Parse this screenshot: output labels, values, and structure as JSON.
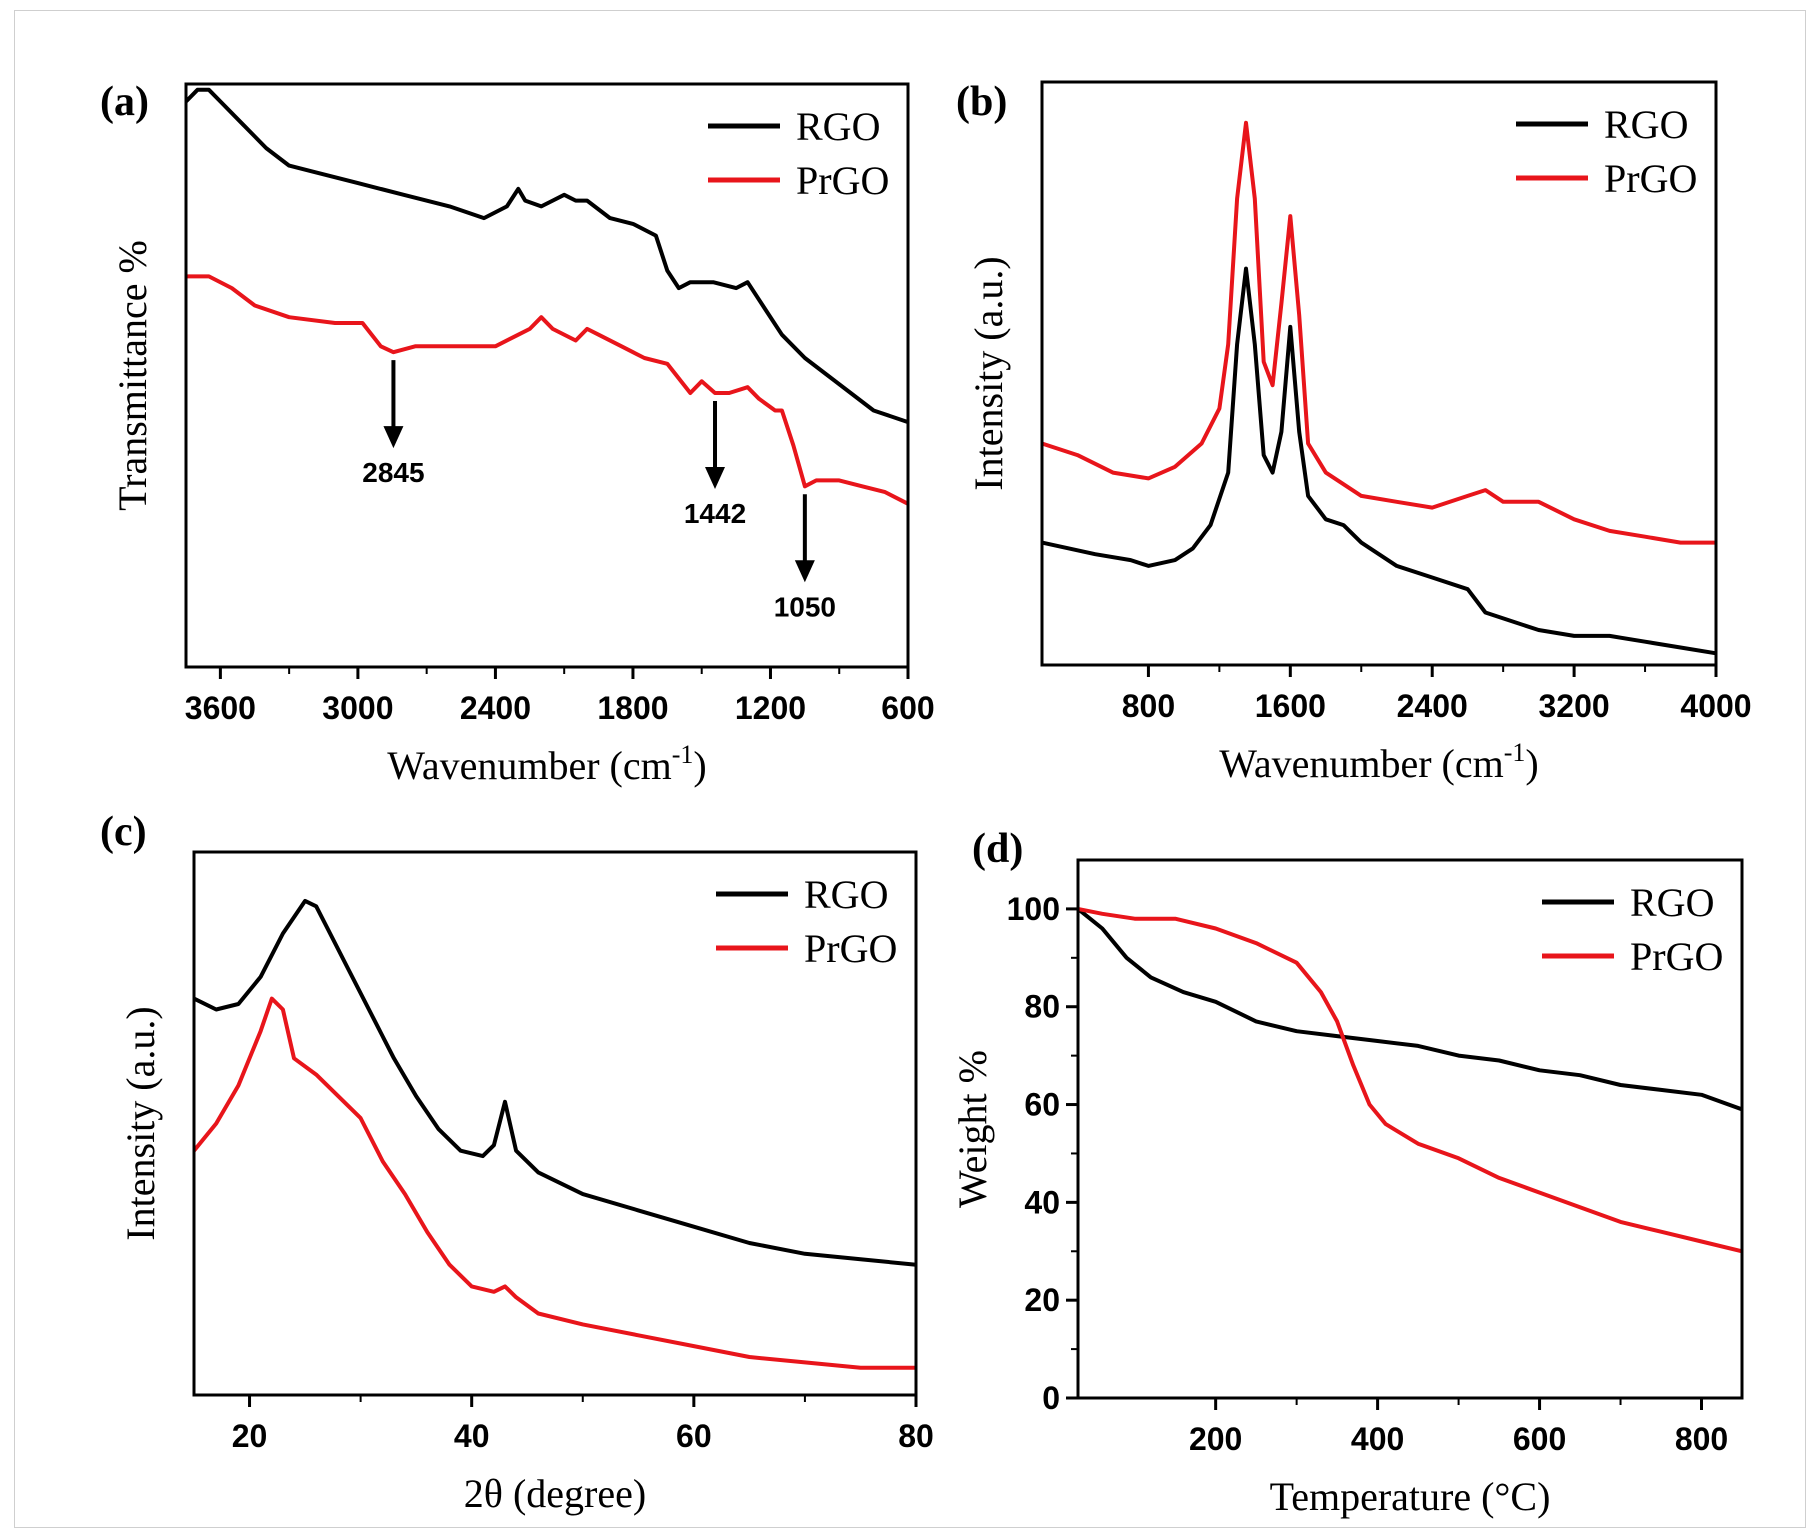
{
  "chart_data": [
    {
      "panel": "(a)",
      "type": "line",
      "xlabel": "Wavenumber (cm-1)",
      "ylabel": "Transmittance %",
      "xlim": [
        3750,
        600
      ],
      "reversed_x": true,
      "ylim": [
        0,
        100
      ],
      "x_ticks": [
        3600,
        3000,
        2400,
        1800,
        1200,
        600
      ],
      "y_ticks": [],
      "y_tick_labels_shown": false,
      "legend": "top-right",
      "series": [
        {
          "name": "RGO",
          "color": "#000000",
          "points": [
            [
              3750,
              97
            ],
            [
              3700,
              99
            ],
            [
              3650,
              99
            ],
            [
              3600,
              97
            ],
            [
              3500,
              93
            ],
            [
              3400,
              89
            ],
            [
              3300,
              86
            ],
            [
              3200,
              85
            ],
            [
              3000,
              83
            ],
            [
              2800,
              81
            ],
            [
              2600,
              79
            ],
            [
              2450,
              77
            ],
            [
              2350,
              79
            ],
            [
              2300,
              82
            ],
            [
              2270,
              80
            ],
            [
              2200,
              79
            ],
            [
              2150,
              80
            ],
            [
              2100,
              81
            ],
            [
              2050,
              80
            ],
            [
              2000,
              80
            ],
            [
              1900,
              77
            ],
            [
              1800,
              76
            ],
            [
              1700,
              74
            ],
            [
              1650,
              68
            ],
            [
              1600,
              65
            ],
            [
              1550,
              66
            ],
            [
              1450,
              66
            ],
            [
              1350,
              65
            ],
            [
              1300,
              66
            ],
            [
              1250,
              63
            ],
            [
              1150,
              57
            ],
            [
              1050,
              53
            ],
            [
              950,
              50
            ],
            [
              850,
              47
            ],
            [
              750,
              44
            ],
            [
              600,
              42
            ]
          ]
        },
        {
          "name": "PrGO",
          "color": "#e8151b",
          "points": [
            [
              3750,
              67
            ],
            [
              3650,
              67
            ],
            [
              3550,
              65
            ],
            [
              3450,
              62
            ],
            [
              3300,
              60
            ],
            [
              3100,
              59
            ],
            [
              2980,
              59
            ],
            [
              2900,
              55
            ],
            [
              2845,
              54
            ],
            [
              2750,
              55
            ],
            [
              2600,
              55
            ],
            [
              2400,
              55
            ],
            [
              2300,
              57
            ],
            [
              2250,
              58
            ],
            [
              2200,
              60
            ],
            [
              2150,
              58
            ],
            [
              2050,
              56
            ],
            [
              2000,
              58
            ],
            [
              1950,
              57
            ],
            [
              1850,
              55
            ],
            [
              1800,
              54
            ],
            [
              1750,
              53
            ],
            [
              1650,
              52
            ],
            [
              1550,
              47
            ],
            [
              1500,
              49
            ],
            [
              1442,
              47
            ],
            [
              1380,
              47
            ],
            [
              1300,
              48
            ],
            [
              1250,
              46
            ],
            [
              1180,
              44
            ],
            [
              1150,
              44
            ],
            [
              1100,
              38
            ],
            [
              1050,
              31
            ],
            [
              1000,
              32
            ],
            [
              900,
              32
            ],
            [
              800,
              31
            ],
            [
              700,
              30
            ],
            [
              600,
              28
            ]
          ]
        }
      ],
      "annotations": [
        {
          "label": "2845",
          "x": 2845
        },
        {
          "label": "1442",
          "x": 1442
        },
        {
          "label": "1050",
          "x": 1050
        }
      ]
    },
    {
      "panel": "(b)",
      "type": "line",
      "xlabel": "Wavenumber (cm-1)",
      "ylabel": "Intensity (a.u.)",
      "xlim": [
        200,
        4000
      ],
      "reversed_x": false,
      "ylim": [
        0,
        100
      ],
      "x_ticks": [
        800,
        1600,
        2400,
        3200,
        4000
      ],
      "y_ticks": [],
      "y_tick_labels_shown": false,
      "legend": "top-right",
      "series": [
        {
          "name": "RGO",
          "color": "#000000",
          "points": [
            [
              200,
              21
            ],
            [
              500,
              19
            ],
            [
              700,
              18
            ],
            [
              800,
              17
            ],
            [
              950,
              18
            ],
            [
              1050,
              20
            ],
            [
              1150,
              24
            ],
            [
              1250,
              33
            ],
            [
              1300,
              55
            ],
            [
              1350,
              68
            ],
            [
              1400,
              55
            ],
            [
              1450,
              36
            ],
            [
              1500,
              33
            ],
            [
              1550,
              40
            ],
            [
              1600,
              58
            ],
            [
              1650,
              40
            ],
            [
              1700,
              29
            ],
            [
              1800,
              25
            ],
            [
              1900,
              24
            ],
            [
              2000,
              21
            ],
            [
              2200,
              17
            ],
            [
              2400,
              15
            ],
            [
              2600,
              13
            ],
            [
              2700,
              9
            ],
            [
              2800,
              8
            ],
            [
              3000,
              6
            ],
            [
              3200,
              5
            ],
            [
              3400,
              5
            ],
            [
              3600,
              4
            ],
            [
              3800,
              3
            ],
            [
              4000,
              2
            ]
          ]
        },
        {
          "name": "PrGO",
          "color": "#e8151b",
          "points": [
            [
              200,
              38
            ],
            [
              400,
              36
            ],
            [
              600,
              33
            ],
            [
              800,
              32
            ],
            [
              950,
              34
            ],
            [
              1100,
              38
            ],
            [
              1200,
              44
            ],
            [
              1250,
              55
            ],
            [
              1300,
              80
            ],
            [
              1350,
              93
            ],
            [
              1400,
              80
            ],
            [
              1450,
              52
            ],
            [
              1500,
              48
            ],
            [
              1550,
              62
            ],
            [
              1600,
              77
            ],
            [
              1650,
              60
            ],
            [
              1700,
              38
            ],
            [
              1800,
              33
            ],
            [
              2000,
              29
            ],
            [
              2200,
              28
            ],
            [
              2400,
              27
            ],
            [
              2600,
              29
            ],
            [
              2700,
              30
            ],
            [
              2800,
              28
            ],
            [
              3000,
              28
            ],
            [
              3200,
              25
            ],
            [
              3400,
              23
            ],
            [
              3600,
              22
            ],
            [
              3800,
              21
            ],
            [
              4000,
              21
            ]
          ]
        }
      ]
    },
    {
      "panel": "(c)",
      "type": "line",
      "xlabel": "2θ (degree)",
      "ylabel": "Intensity (a.u.)",
      "xlim": [
        15,
        80
      ],
      "reversed_x": false,
      "ylim": [
        0,
        100
      ],
      "x_ticks": [
        20,
        40,
        60,
        80
      ],
      "y_ticks": [],
      "y_tick_labels_shown": false,
      "legend": "top-right",
      "series": [
        {
          "name": "RGO",
          "color": "#000000",
          "points": [
            [
              15,
              73
            ],
            [
              17,
              71
            ],
            [
              19,
              72
            ],
            [
              21,
              77
            ],
            [
              23,
              85
            ],
            [
              25,
              91
            ],
            [
              26,
              90
            ],
            [
              27,
              86
            ],
            [
              29,
              78
            ],
            [
              31,
              70
            ],
            [
              33,
              62
            ],
            [
              35,
              55
            ],
            [
              37,
              49
            ],
            [
              39,
              45
            ],
            [
              41,
              44
            ],
            [
              42,
              46
            ],
            [
              43,
              54
            ],
            [
              44,
              45
            ],
            [
              46,
              41
            ],
            [
              50,
              37
            ],
            [
              55,
              34
            ],
            [
              60,
              31
            ],
            [
              65,
              28
            ],
            [
              70,
              26
            ],
            [
              75,
              25
            ],
            [
              80,
              24
            ]
          ]
        },
        {
          "name": "PrGO",
          "color": "#e8151b",
          "points": [
            [
              15,
              45
            ],
            [
              17,
              50
            ],
            [
              19,
              57
            ],
            [
              21,
              67
            ],
            [
              22,
              73
            ],
            [
              23,
              71
            ],
            [
              24,
              62
            ],
            [
              26,
              59
            ],
            [
              28,
              55
            ],
            [
              30,
              51
            ],
            [
              32,
              43
            ],
            [
              34,
              37
            ],
            [
              36,
              30
            ],
            [
              38,
              24
            ],
            [
              40,
              20
            ],
            [
              42,
              19
            ],
            [
              43,
              20
            ],
            [
              44,
              18
            ],
            [
              46,
              15
            ],
            [
              50,
              13
            ],
            [
              55,
              11
            ],
            [
              60,
              9
            ],
            [
              65,
              7
            ],
            [
              70,
              6
            ],
            [
              75,
              5
            ],
            [
              80,
              5
            ]
          ]
        }
      ]
    },
    {
      "panel": "(d)",
      "type": "line",
      "xlabel": "Temperature (°C)",
      "ylabel": "Weight %",
      "xlim": [
        30,
        850
      ],
      "reversed_x": false,
      "ylim": [
        0,
        110
      ],
      "x_ticks": [
        200,
        400,
        600,
        800
      ],
      "y_ticks": [
        0,
        20,
        40,
        60,
        80,
        100
      ],
      "y_tick_labels_shown": true,
      "legend": "top-right",
      "series": [
        {
          "name": "RGO",
          "color": "#000000",
          "points": [
            [
              30,
              100
            ],
            [
              60,
              96
            ],
            [
              90,
              90
            ],
            [
              120,
              86
            ],
            [
              160,
              83
            ],
            [
              200,
              81
            ],
            [
              250,
              77
            ],
            [
              300,
              75
            ],
            [
              350,
              74
            ],
            [
              400,
              73
            ],
            [
              450,
              72
            ],
            [
              500,
              70
            ],
            [
              550,
              69
            ],
            [
              600,
              67
            ],
            [
              650,
              66
            ],
            [
              700,
              64
            ],
            [
              750,
              63
            ],
            [
              800,
              62
            ],
            [
              850,
              59
            ]
          ]
        },
        {
          "name": "PrGO",
          "color": "#e8151b",
          "points": [
            [
              30,
              100
            ],
            [
              60,
              99
            ],
            [
              100,
              98
            ],
            [
              150,
              98
            ],
            [
              200,
              96
            ],
            [
              250,
              93
            ],
            [
              300,
              89
            ],
            [
              330,
              83
            ],
            [
              350,
              77
            ],
            [
              370,
              68
            ],
            [
              390,
              60
            ],
            [
              410,
              56
            ],
            [
              450,
              52
            ],
            [
              500,
              49
            ],
            [
              550,
              45
            ],
            [
              600,
              42
            ],
            [
              650,
              39
            ],
            [
              700,
              36
            ],
            [
              750,
              34
            ],
            [
              800,
              32
            ],
            [
              850,
              30
            ]
          ]
        }
      ]
    }
  ]
}
